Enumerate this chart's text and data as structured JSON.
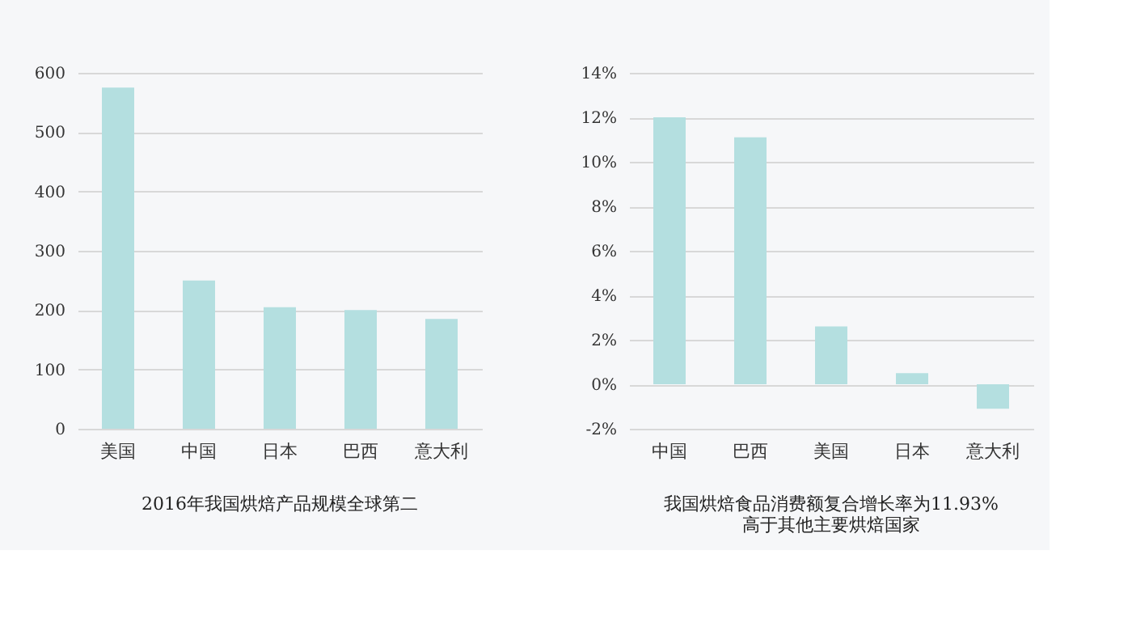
{
  "chart_data": [
    {
      "type": "bar",
      "title": "2016年我国烘焙产品规模全球第二",
      "categories": [
        "美国",
        "中国",
        "日本",
        "巴西",
        "意大利"
      ],
      "values": [
        575,
        250,
        205,
        200,
        185
      ],
      "color": "#b4dfe0",
      "ylim": [
        0,
        600
      ],
      "yticks": [
        0,
        100,
        200,
        300,
        400,
        500,
        600
      ],
      "grid": "y"
    },
    {
      "type": "bar",
      "title": "我国烘焙食品消费额复合增长率为11.93%\n高于其他主要烘焙国家",
      "categories": [
        "中国",
        "巴西",
        "美国",
        "日本",
        "意大利"
      ],
      "values": [
        12,
        11.1,
        2.6,
        0.5,
        -1.1
      ],
      "color": "#b4dfe0",
      "ylim": [
        -2,
        14
      ],
      "yticks": [
        {
          "value": -2,
          "label": "-2%"
        },
        {
          "value": 0,
          "label": "0%"
        },
        {
          "value": 2,
          "label": "2%"
        },
        {
          "value": 4,
          "label": "4%"
        },
        {
          "value": 6,
          "label": "6%"
        },
        {
          "value": 8,
          "label": "8%"
        },
        {
          "value": 10,
          "label": "10%"
        },
        {
          "value": 12,
          "label": "12%"
        },
        {
          "value": 14,
          "label": "14%"
        }
      ],
      "grid": "y"
    }
  ]
}
